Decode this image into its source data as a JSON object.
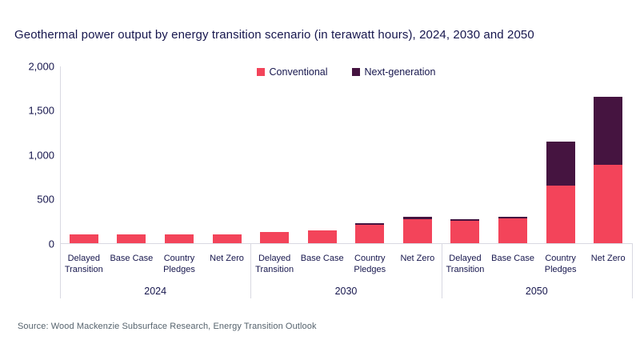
{
  "title": "Geothermal power output by energy transition scenario (in terawatt hours), 2024, 2030 and 2050",
  "source": "Source: Wood Mackenzie Subsurface Research, Energy Transition Outlook",
  "colors": {
    "conventional": "#f3445a",
    "next_generation": "#451440",
    "text_navy": "#16164d",
    "source_text": "#56636d",
    "axis_line": "#d9d9e2"
  },
  "chart_data": {
    "type": "bar",
    "stacked": true,
    "title": "Geothermal power output by energy transition scenario (in terawatt hours), 2024, 2030 and 2050",
    "unit": "terawatt hours",
    "grid": false,
    "legend_position": "top",
    "ylim": [
      0,
      2000
    ],
    "y_ticks": [
      {
        "value": 0,
        "label": "0"
      },
      {
        "value": 500,
        "label": "500"
      },
      {
        "value": 1000,
        "label": "1,000"
      },
      {
        "value": 1500,
        "label": "1,500"
      },
      {
        "value": 2000,
        "label": "2,000"
      }
    ],
    "group_labels": [
      "2024",
      "2030",
      "2050"
    ],
    "categories": [
      "Delayed Transition",
      "Base Case",
      "Country Pledges",
      "Net Zero"
    ],
    "series": [
      {
        "name": "Conventional",
        "color": "#f3445a",
        "values": [
          100,
          100,
          100,
          100,
          130,
          145,
          210,
          275,
          260,
          285,
          650,
          890
        ]
      },
      {
        "name": "Next-generation",
        "color": "#451440",
        "values": [
          0,
          0,
          0,
          0,
          0,
          0,
          20,
          25,
          15,
          20,
          500,
          760
        ]
      }
    ]
  }
}
